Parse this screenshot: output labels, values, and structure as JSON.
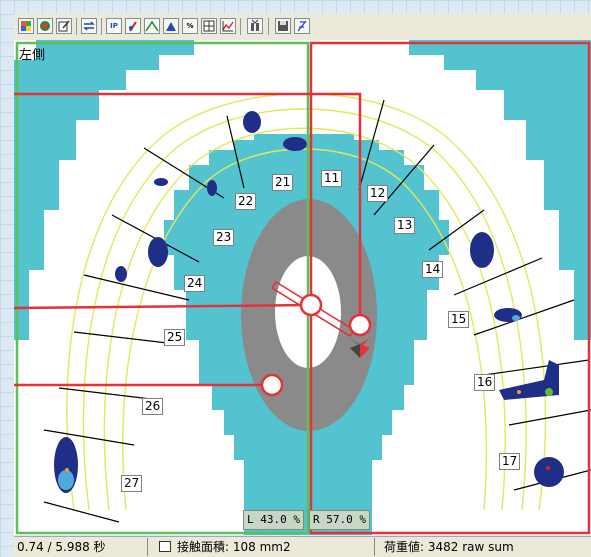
{
  "toolbar": {
    "buttons": [
      {
        "name": "color-grid-icon"
      },
      {
        "name": "record-icon"
      },
      {
        "name": "edit-icon"
      },
      {
        "name": "swap-icon"
      },
      {
        "name": "ip-icon",
        "label": "IP"
      },
      {
        "name": "marker-icon"
      },
      {
        "name": "curve-icon"
      },
      {
        "name": "triangle-icon"
      },
      {
        "name": "percent-icon",
        "label": "%"
      },
      {
        "name": "grid-icon"
      },
      {
        "name": "graph-icon"
      },
      {
        "name": "force-icon"
      },
      {
        "name": "save-icon"
      },
      {
        "name": "settings-icon"
      }
    ]
  },
  "view": {
    "side_label": "左側",
    "teeth": [
      "21",
      "11",
      "22",
      "12",
      "23",
      "13",
      "24",
      "14",
      "25",
      "15",
      "26",
      "16",
      "27",
      "17"
    ],
    "left_percent": "L 43.0 %",
    "right_percent": "R 57.0 %",
    "colors": {
      "background": "#52c3cf",
      "arch": "#ffffff",
      "arch_lines": "#e4e85a",
      "contact": "#1f2f88",
      "center_ring": "#8a8a8a",
      "left_box": "#5cc05a",
      "right_box": "#e53138",
      "trajectory": "#e53138"
    }
  },
  "status": {
    "time": "0.74 / 5.988 秒",
    "contact_area": "接触面積: 108 mm2",
    "load": "荷重値: 3482 raw sum"
  }
}
